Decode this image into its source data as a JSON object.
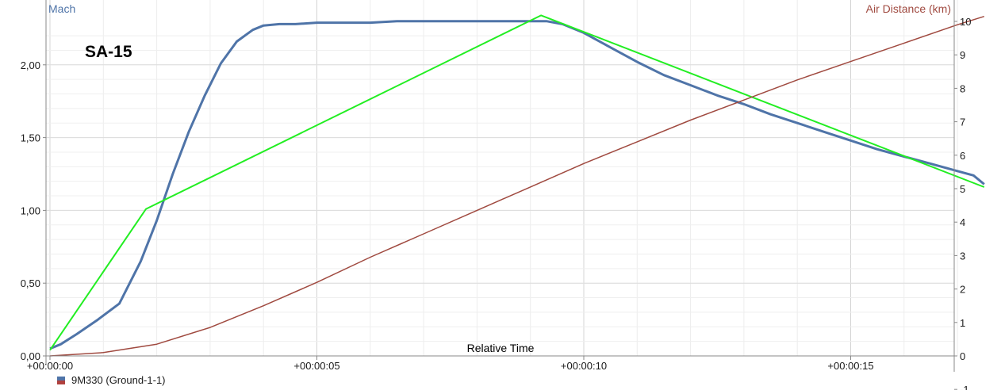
{
  "chart_data": {
    "type": "line",
    "title": "SA-15",
    "xlabel": "Relative Time",
    "x_ticks": [
      "+00:00:00",
      "+00:00:05",
      "+00:00:10",
      "+00:00:15"
    ],
    "xlim": [
      0,
      17.5
    ],
    "y_left": {
      "label": "Mach",
      "ylim": [
        0,
        2.3
      ],
      "ticks": [
        "0,00",
        "0,50",
        "1,00",
        "1,50",
        "2,00"
      ],
      "tick_values": [
        0,
        0.5,
        1.0,
        1.5,
        2.0
      ]
    },
    "y_right": {
      "label": "Air Distance (km)",
      "ylim": [
        -1,
        10.3
      ],
      "ticks": [
        "-1",
        "0",
        "1",
        "2",
        "3",
        "4",
        "5",
        "6",
        "7",
        "8",
        "9",
        "10"
      ],
      "tick_values": [
        -1,
        0,
        1,
        2,
        3,
        4,
        5,
        6,
        7,
        8,
        9,
        10
      ]
    },
    "grid": true,
    "legend_position": "bottom-left",
    "series": [
      {
        "name": "9M330 (Ground-1-1)",
        "axis": "left",
        "color": "#4f74a8",
        "x": [
          0,
          0.2,
          0.5,
          0.9,
          1.3,
          1.7,
          2.0,
          2.3,
          2.6,
          2.9,
          3.2,
          3.5,
          3.8,
          4.0,
          4.3,
          4.6,
          5.0,
          5.5,
          6.0,
          6.5,
          7.0,
          7.5,
          8.0,
          8.5,
          9.0,
          9.3,
          9.6,
          10.0,
          10.5,
          11.0,
          11.5,
          12.0,
          12.5,
          13.0,
          13.5,
          14.0,
          14.5,
          15.0,
          15.5,
          16.0,
          16.5,
          17.0,
          17.3,
          17.5
        ],
        "values": [
          0.05,
          0.08,
          0.15,
          0.25,
          0.36,
          0.65,
          0.93,
          1.25,
          1.54,
          1.79,
          2.01,
          2.16,
          2.24,
          2.27,
          2.28,
          2.28,
          2.29,
          2.29,
          2.29,
          2.3,
          2.3,
          2.3,
          2.3,
          2.3,
          2.3,
          2.3,
          2.28,
          2.22,
          2.12,
          2.02,
          1.93,
          1.86,
          1.79,
          1.73,
          1.66,
          1.6,
          1.54,
          1.48,
          1.42,
          1.37,
          1.32,
          1.27,
          1.24,
          1.18
        ]
      },
      {
        "name": "",
        "axis": "left",
        "color": "#22ee22",
        "x": [
          0,
          1.8,
          9.2,
          17.5
        ],
        "values": [
          0.04,
          1.01,
          2.34,
          1.16
        ]
      },
      {
        "name": "Air Distance (km)",
        "axis": "right",
        "color": "#a04a40",
        "x": [
          0,
          1,
          2,
          3,
          4,
          5,
          6,
          7,
          8,
          9,
          10,
          11,
          12,
          13,
          14,
          15,
          16,
          17,
          17.5
        ],
        "values": [
          0,
          0.1,
          0.35,
          0.85,
          1.5,
          2.2,
          2.95,
          3.65,
          4.35,
          5.05,
          5.75,
          6.4,
          7.05,
          7.65,
          8.25,
          8.8,
          9.35,
          9.9,
          10.15
        ]
      }
    ]
  },
  "legend": {
    "label": "9M330 (Ground-1-1)"
  }
}
